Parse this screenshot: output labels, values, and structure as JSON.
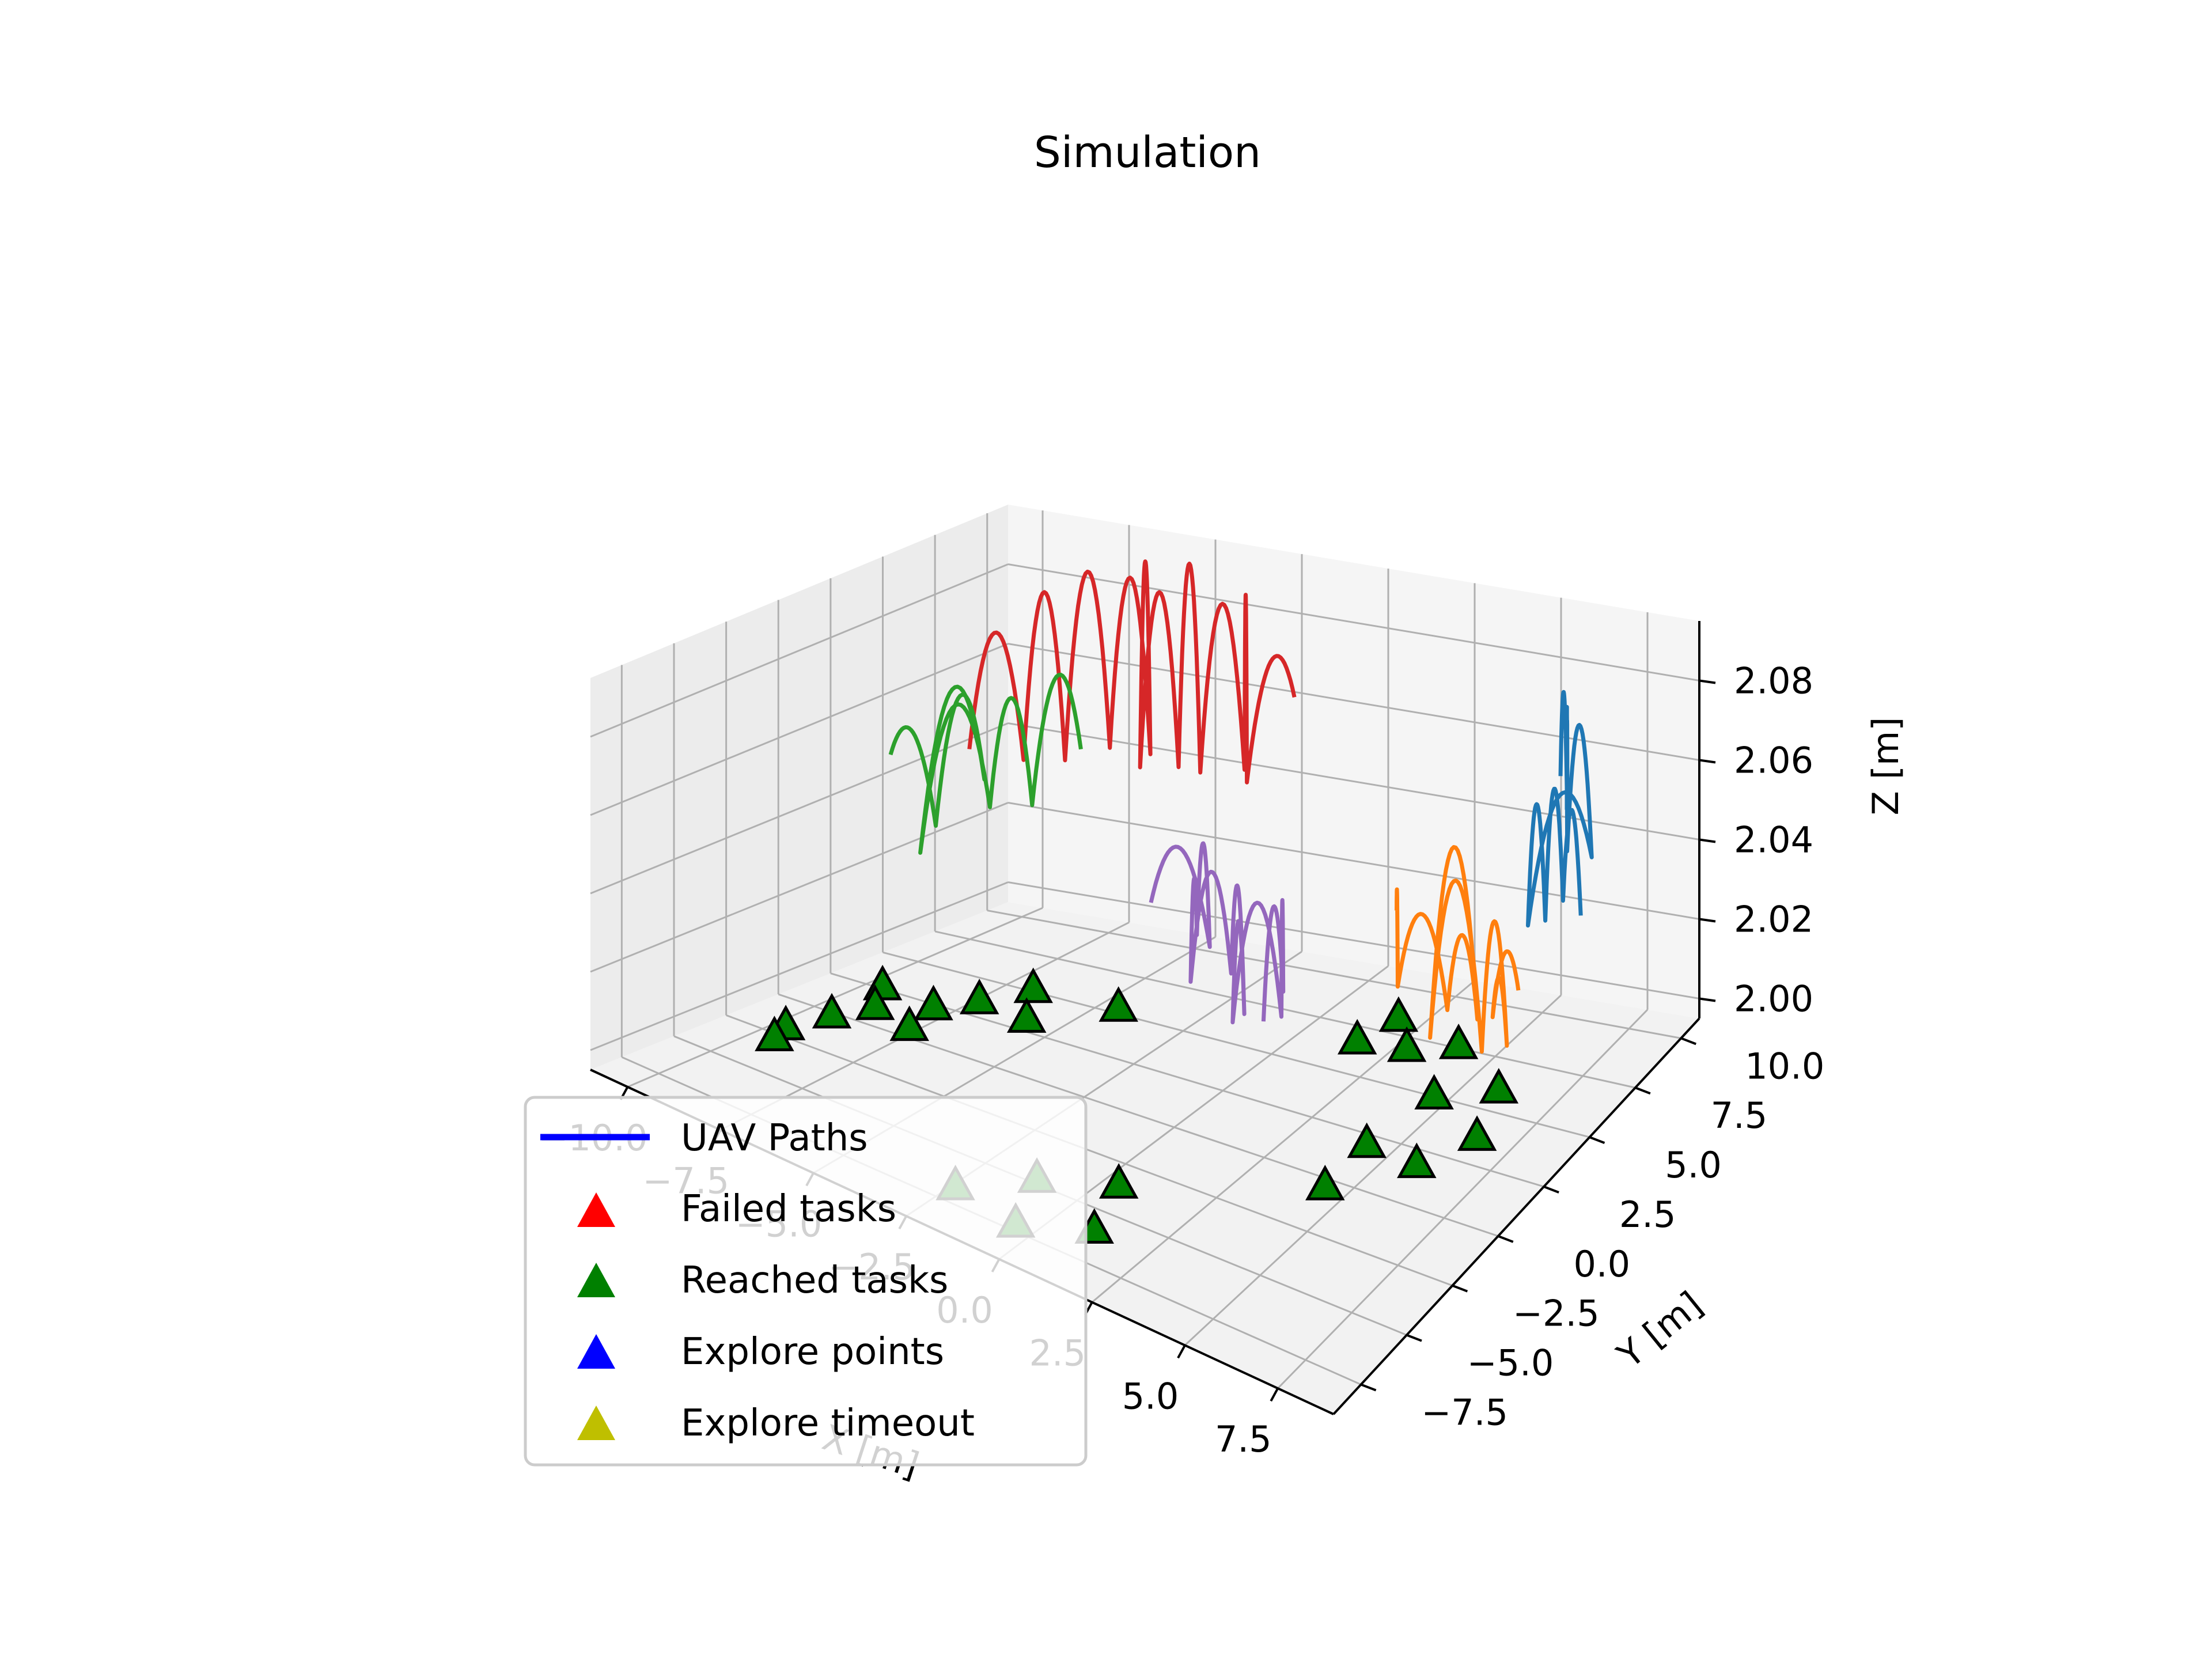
{
  "chart_data": {
    "type": "line3d",
    "title": "Simulation",
    "xlabel": "X [m]",
    "ylabel": "Y [m]",
    "zlabel": "Z [m]",
    "xticks": [
      "−10.0",
      "−7.5",
      "−5.0",
      "−2.5",
      "0.0",
      "2.5",
      "5.0",
      "7.5"
    ],
    "yticks": [
      "−7.5",
      "−5.0",
      "−2.5",
      "0.0",
      "2.5",
      "5.0",
      "7.5",
      "10.0"
    ],
    "zticks": [
      "2.00",
      "2.02",
      "2.04",
      "2.06",
      "2.08"
    ],
    "xlim": [
      -11,
      9
    ],
    "ylim": [
      -9,
      11
    ],
    "zlim": [
      1.995,
      2.095
    ],
    "grid": true,
    "legend": {
      "position": "lower-left",
      "entries": [
        {
          "label": "UAV Paths",
          "marker": "line",
          "color": "#0000ff"
        },
        {
          "label": "Failed tasks",
          "marker": "triangle",
          "color": "#ff0000"
        },
        {
          "label": "Reached tasks",
          "marker": "triangle",
          "color": "#008000"
        },
        {
          "label": "Explore points",
          "marker": "triangle",
          "color": "#0000ff"
        },
        {
          "label": "Explore timeout",
          "marker": "triangle",
          "color": "#bfbf00"
        }
      ]
    },
    "paths": [
      {
        "color": "#d62728",
        "x": [
          -9.9,
          -9.0,
          -8.4,
          -7.7,
          -7.0,
          -6.3,
          -5.6,
          -4.8,
          -4.1,
          -3.4,
          -2.6
        ],
        "y": [
          7.3,
          8.4,
          9.4,
          10.4,
          11.2,
          9.5,
          10.2,
          9.9,
          10.9,
          9.8,
          10.8
        ],
        "troughs": [
          2.0436,
          2.04,
          2.0385,
          2.0402,
          2.0375,
          2.04,
          2.0392,
          2.04,
          2.0387,
          2.0401,
          2.0595
        ],
        "peaks": [
          2.0726,
          2.0816,
          2.0853,
          2.0825,
          2.0889,
          2.0837,
          2.0915,
          2.0815,
          2.085
        ]
      },
      {
        "color": "#2ca02c",
        "x": [
          -9.9,
          -9.5,
          -9.0,
          -8.6,
          -8.2,
          -7.7,
          -7.3
        ],
        "y": [
          3.5,
          5.0,
          6.5,
          2.7,
          5.4,
          6.6,
          8.3
        ],
        "troughs": [
          2.051,
          2.0305,
          2.0397,
          2.0315,
          2.0372,
          2.0357,
          2.0461
        ],
        "peaks": [
          2.0553,
          2.0621,
          2.0676,
          2.0659,
          2.0638,
          2.0663
        ]
      },
      {
        "color": "#9467bd",
        "x": [
          -3.3,
          -2.7,
          -2.0,
          -1.4,
          -0.7,
          0.0,
          0.6,
          1.1,
          1.8,
          1.3
        ],
        "y": [
          4.8,
          6.7,
          4.8,
          3.4,
          4.2,
          3.6,
          1.9,
          3.5,
          2.3,
          2.2
        ],
        "troughs": [
          2.0262,
          2.0101,
          2.0211,
          2.0156,
          2.0166,
          2.0103,
          2.0162,
          2.0128,
          2.0257,
          2.0172
        ],
        "peaks": [
          2.0375,
          2.0402,
          2.0381,
          2.0429,
          2.0406,
          2.0378,
          2.0441,
          2.0455,
          2.0467
        ]
      },
      {
        "color": "#1f77b4",
        "x": [
          5.2,
          5.4,
          5.6,
          6.2,
          6.8,
          6.2,
          6.8,
          7.2,
          7.6
        ],
        "y": [
          10.6,
          10.6,
          10.2,
          9.1,
          9.3,
          7.0,
          6.8,
          7.0,
          7.2
        ],
        "troughs": [
          2.0522,
          2.0404,
          2.0463,
          2.0417,
          2.0403,
          2.0327,
          2.0361,
          2.041,
          2.0371
        ],
        "peaks": [
          2.0732,
          2.0675,
          2.0748,
          2.0736,
          2.0608,
          2.0644,
          2.0693,
          2.0638
        ]
      },
      {
        "color": "#ff7f0e",
        "x": [
          3.0,
          4.0,
          5.4,
          6.3,
          5.6,
          7.0,
          7.6,
          7.2,
          7.3
        ],
        "y": [
          6.0,
          4.2,
          4.2,
          4.1,
          2.9,
          3.0,
          3.2,
          3.2,
          4.4
        ],
        "troughs": [
          2.0341,
          2.0248,
          2.0223,
          2.0226,
          2.0217,
          2.0214,
          2.0235,
          2.0297,
          2.031
        ],
        "peaks": [
          2.0426,
          2.0448,
          2.0426,
          2.0681,
          2.0631,
          2.0547,
          2.04,
          2.0434
        ]
      }
    ],
    "reached_tasks": [
      {
        "x": -9.6,
        "y": 2.6
      },
      {
        "x": -9.0,
        "y": 1.2
      },
      {
        "x": -9.4,
        "y": -0.2
      },
      {
        "x": -9.7,
        "y": -1.9
      },
      {
        "x": -8.0,
        "y": 2.3
      },
      {
        "x": -7.7,
        "y": 0.6
      },
      {
        "x": -7.4,
        "y": 3.5
      },
      {
        "x": -6.8,
        "y": 5.1
      },
      {
        "x": -5.9,
        "y": 3.2
      },
      {
        "x": -4.5,
        "y": 5.3
      },
      {
        "x": -9.5,
        "y": -2.8
      },
      {
        "x": -2.4,
        "y": -6.7
      },
      {
        "x": -1.2,
        "y": -4.8
      },
      {
        "x": -0.5,
        "y": -7.2
      },
      {
        "x": 0.4,
        "y": -3.6
      },
      {
        "x": 1.0,
        "y": -6.0
      },
      {
        "x": 1.5,
        "y": 6.7
      },
      {
        "x": 1.8,
        "y": 8.3
      },
      {
        "x": 2.8,
        "y": 6.9
      },
      {
        "x": 3.9,
        "y": 7.6
      },
      {
        "x": 4.6,
        "y": 5.0
      },
      {
        "x": 5.9,
        "y": 6.0
      },
      {
        "x": 6.5,
        "y": 3.7
      },
      {
        "x": 4.3,
        "y": 2.0
      },
      {
        "x": 5.8,
        "y": 1.8
      },
      {
        "x": 4.4,
        "y": -0.4
      }
    ]
  }
}
